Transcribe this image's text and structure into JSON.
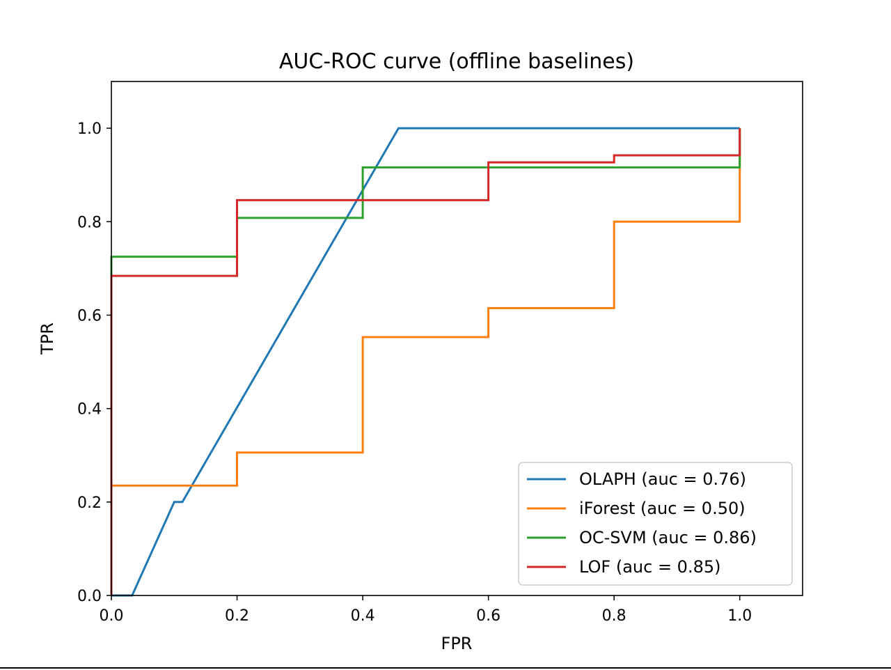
{
  "chart_data": {
    "type": "line",
    "title": "AUC-ROC curve (offline baselines)",
    "xlabel": "FPR",
    "ylabel": "TPR",
    "xlim": [
      0.0,
      1.1
    ],
    "ylim": [
      0.0,
      1.1
    ],
    "xticks": [
      "0.0",
      "0.2",
      "0.4",
      "0.6",
      "0.8",
      "1.0"
    ],
    "yticks": [
      "0.0",
      "0.2",
      "0.4",
      "0.6",
      "0.8",
      "1.0"
    ],
    "grid": false,
    "legend_position": "lower-right",
    "series": [
      {
        "name": "OLAPH (auc = 0.76)",
        "color": "#1f77b4",
        "x": [
          0.0,
          0.033,
          0.1,
          0.113,
          0.457,
          1.0
        ],
        "y": [
          0.0,
          0.0,
          0.2,
          0.2,
          1.0,
          1.0
        ]
      },
      {
        "name": "iForest (auc = 0.50)",
        "color": "#ff7f0e",
        "x": [
          0.0,
          0.0,
          0.2,
          0.2,
          0.4,
          0.4,
          0.6,
          0.6,
          0.8,
          0.8,
          1.0,
          1.0
        ],
        "y": [
          0.0,
          0.235,
          0.235,
          0.306,
          0.306,
          0.553,
          0.553,
          0.615,
          0.615,
          0.8,
          0.8,
          1.0
        ]
      },
      {
        "name": "OC-SVM (auc = 0.86)",
        "color": "#2ca02c",
        "x": [
          0.0,
          0.0,
          0.2,
          0.2,
          0.4,
          0.4,
          1.0,
          1.0
        ],
        "y": [
          0.0,
          0.725,
          0.725,
          0.808,
          0.808,
          0.916,
          0.916,
          1.0
        ]
      },
      {
        "name": "LOF (auc = 0.85)",
        "color": "#d62728",
        "x": [
          0.0,
          0.0,
          0.2,
          0.2,
          0.6,
          0.6,
          0.8,
          0.8,
          1.0,
          1.0
        ],
        "y": [
          0.0,
          0.684,
          0.684,
          0.846,
          0.846,
          0.927,
          0.927,
          0.942,
          0.942,
          1.0
        ]
      }
    ]
  }
}
